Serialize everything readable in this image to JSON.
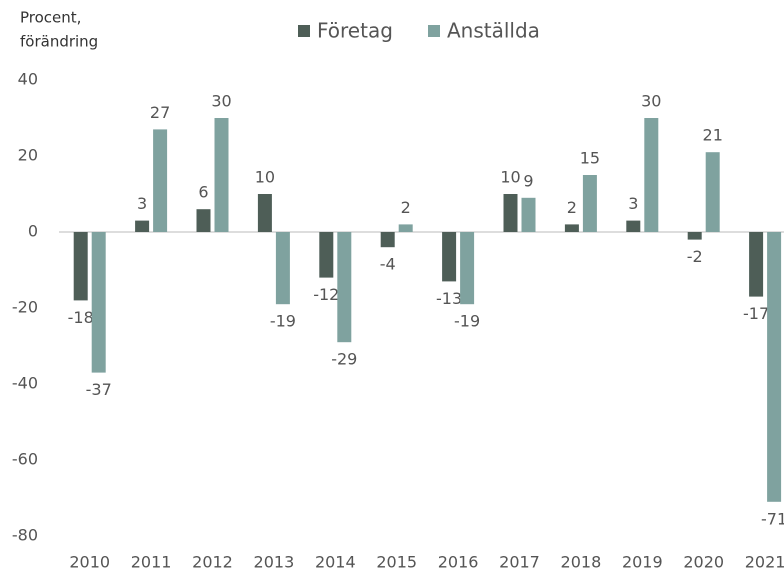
{
  "chart_data": {
    "type": "bar",
    "ylabel": [
      "Procent,",
      "förändring"
    ],
    "categories": [
      "2010",
      "2011",
      "2012",
      "2013",
      "2014",
      "2015",
      "2016",
      "2017",
      "2018",
      "2019",
      "2020",
      "2021"
    ],
    "series": [
      {
        "name": "Företag",
        "color": "#4e5e57",
        "values": [
          -18,
          3,
          6,
          10,
          -12,
          -4,
          -13,
          10,
          2,
          3,
          -2,
          -17
        ]
      },
      {
        "name": "Anställda",
        "color": "#7fa29f",
        "values": [
          -37,
          27,
          30,
          -19,
          -29,
          2,
          -19,
          9,
          15,
          30,
          21,
          -71
        ]
      }
    ],
    "ylim": [
      -80,
      40
    ],
    "yticks": [
      -80,
      -60,
      -40,
      -20,
      0,
      20,
      40
    ],
    "grid": false,
    "legend": "top"
  }
}
